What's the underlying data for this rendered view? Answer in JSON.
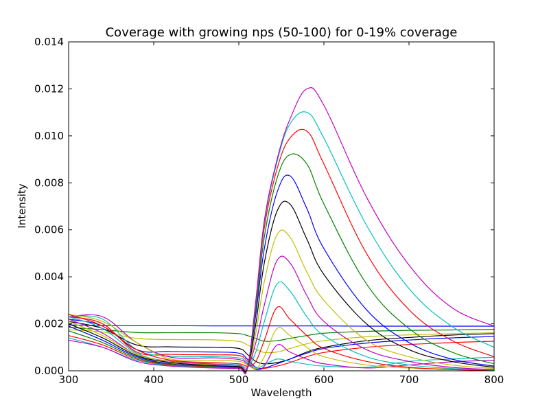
{
  "chart_data": {
    "type": "line",
    "title": "Coverage with growing nps (50-100) for 0-19% coverage",
    "xlabel": "Wavelength",
    "ylabel": "Intensity",
    "xlim": [
      300,
      800
    ],
    "ylim": [
      0,
      0.014
    ],
    "x_ticks": [
      "300",
      "400",
      "500",
      "600",
      "700",
      "800"
    ],
    "y_ticks": [
      "0.000",
      "0.002",
      "0.004",
      "0.006",
      "0.008",
      "0.010",
      "0.012",
      "0.014"
    ],
    "grid": false,
    "legend": "none",
    "x": [
      300,
      340,
      380,
      420,
      470,
      500,
      510,
      520,
      530,
      545,
      560,
      580,
      600,
      650,
      700,
      750,
      800
    ],
    "series": [
      {
        "color": "#0000ff",
        "values": [
          0.00195,
          0.00193,
          0.00192,
          0.00192,
          0.00191,
          0.00191,
          0.00191,
          0.00191,
          0.00191,
          0.00191,
          0.00191,
          0.00191,
          0.00191,
          0.0019,
          0.0019,
          0.0019,
          0.0019
        ]
      },
      {
        "color": "#008000",
        "values": [
          0.00185,
          0.00175,
          0.00163,
          0.00162,
          0.00162,
          0.00158,
          0.0015,
          0.00138,
          0.00126,
          0.00128,
          0.00138,
          0.0015,
          0.0016,
          0.00168,
          0.00172,
          0.00174,
          0.00176
        ]
      },
      {
        "color": "#bfbf00",
        "values": [
          0.00175,
          0.00165,
          0.00138,
          0.00133,
          0.00132,
          0.00125,
          0.0011,
          0.00092,
          0.00078,
          0.0008,
          0.00095,
          0.00115,
          0.00128,
          0.00145,
          0.00153,
          0.00158,
          0.00162
        ]
      },
      {
        "color": "#000000",
        "values": [
          0.0021,
          0.0018,
          0.0011,
          0.00102,
          0.001,
          0.00095,
          0.0007,
          0.0004,
          0.0003,
          0.00035,
          0.0005,
          0.0008,
          0.001,
          0.00128,
          0.00142,
          0.00152,
          0.00158
        ]
      },
      {
        "color": "#0000ff",
        "values": [
          0.0022,
          0.0019,
          0.0009,
          0.00082,
          0.0008,
          0.00075,
          0.0005,
          0.00015,
          0.00012,
          0.0003,
          0.0005,
          0.00075,
          0.00095,
          0.00118,
          0.00131,
          0.0014,
          0.00146
        ]
      },
      {
        "color": "#ff0000",
        "values": [
          0.0023,
          0.002,
          0.0008,
          0.0007,
          0.00068,
          0.00065,
          0.00042,
          8e-05,
          0.0001,
          0.0002,
          0.00035,
          0.0006,
          0.00078,
          0.001,
          0.00112,
          0.0012,
          0.00126
        ]
      },
      {
        "color": "#00bfbf",
        "values": [
          0.0023,
          0.0022,
          0.0009,
          0.00062,
          0.0006,
          0.00055,
          0.00035,
          0.0001,
          0.00025,
          0.0005,
          0.0004,
          0.00028,
          0.0002,
          0.00015,
          0.0004,
          0.0005,
          0.00058
        ]
      },
      {
        "color": "#bf00bf",
        "values": [
          0.0023,
          0.0023,
          0.0012,
          0.00058,
          0.00055,
          0.00048,
          0.0003,
          5e-05,
          0.0002,
          0.0011,
          0.0008,
          0.0005,
          0.0003,
          0.00012,
          0.00025,
          0.00038,
          0.00045
        ]
      },
      {
        "color": "#bfbf00",
        "values": [
          0.0024,
          0.0021,
          0.0012,
          0.0005,
          0.00045,
          0.0004,
          0.00025,
          0.0001,
          0.0006,
          0.0018,
          0.0015,
          0.001,
          0.0006,
          0.00025,
          0.00012,
          8e-05,
          5e-05
        ]
      },
      {
        "color": "#ff0000",
        "values": [
          0.0024,
          0.0019,
          0.0009,
          0.00045,
          0.00035,
          0.0003,
          0.0002,
          0.0004,
          0.0013,
          0.0027,
          0.0022,
          0.0015,
          0.00095,
          0.0004,
          0.00015,
          5e-05,
          2e-05
        ]
      },
      {
        "color": "#00bfbf",
        "values": [
          0.0023,
          0.0018,
          0.00075,
          0.0004,
          0.0003,
          0.00025,
          0.00015,
          0.0008,
          0.0021,
          0.0037,
          0.0034,
          0.0023,
          0.0015,
          0.0006,
          0.00025,
          0.0001,
          3e-05
        ]
      },
      {
        "color": "#bf00bf",
        "values": [
          0.0022,
          0.0016,
          0.0007,
          0.0004,
          0.00028,
          0.00022,
          0.00012,
          0.0012,
          0.0028,
          0.0047,
          0.0046,
          0.0032,
          0.0021,
          0.0009,
          0.0004,
          0.00015,
          5e-05
        ]
      },
      {
        "color": "#bfbf00",
        "values": [
          0.0021,
          0.0015,
          0.0007,
          0.00038,
          0.00025,
          0.0002,
          0.0001,
          0.0016,
          0.0038,
          0.0058,
          0.0057,
          0.0042,
          0.003,
          0.0013,
          0.0006,
          0.00025,
          0.0001
        ]
      },
      {
        "color": "#000000",
        "values": [
          0.002,
          0.0014,
          0.00065,
          0.00035,
          0.00022,
          0.00018,
          0.0001,
          0.002,
          0.0046,
          0.0068,
          0.0071,
          0.0056,
          0.0041,
          0.002,
          0.0009,
          0.0004,
          0.00015
        ]
      },
      {
        "color": "#0000ff",
        "values": [
          0.0019,
          0.0013,
          0.0006,
          0.0003,
          0.0002,
          0.00015,
          0.0001,
          0.0024,
          0.0052,
          0.0076,
          0.0083,
          0.0069,
          0.0052,
          0.0026,
          0.0012,
          0.0005,
          0.0002
        ]
      },
      {
        "color": "#008000",
        "values": [
          0.0017,
          0.0012,
          0.00055,
          0.00028,
          0.00018,
          0.00013,
          0.0001,
          0.0026,
          0.0057,
          0.0082,
          0.0092,
          0.0088,
          0.0071,
          0.0037,
          0.0018,
          0.0008,
          0.0003
        ]
      },
      {
        "color": "#ff0000",
        "values": [
          0.0015,
          0.0011,
          0.0005,
          0.00025,
          0.00016,
          0.00012,
          0.0001,
          0.0028,
          0.0061,
          0.0086,
          0.0099,
          0.0102,
          0.0088,
          0.005,
          0.0026,
          0.0013,
          0.0006
        ]
      },
      {
        "color": "#00bfbf",
        "values": [
          0.0014,
          0.001,
          0.00045,
          0.00022,
          0.00014,
          0.0001,
          0.0001,
          0.0029,
          0.0063,
          0.0089,
          0.0105,
          0.011,
          0.0099,
          0.0062,
          0.0035,
          0.0019,
          0.001
        ]
      },
      {
        "color": "#bf00bf",
        "values": [
          0.0013,
          0.001,
          0.0004,
          0.0002,
          0.00012,
          0.0001,
          0.0001,
          0.003,
          0.0064,
          0.009,
          0.0107,
          0.012,
          0.0113,
          0.0074,
          0.0045,
          0.0027,
          0.0019
        ]
      }
    ]
  }
}
